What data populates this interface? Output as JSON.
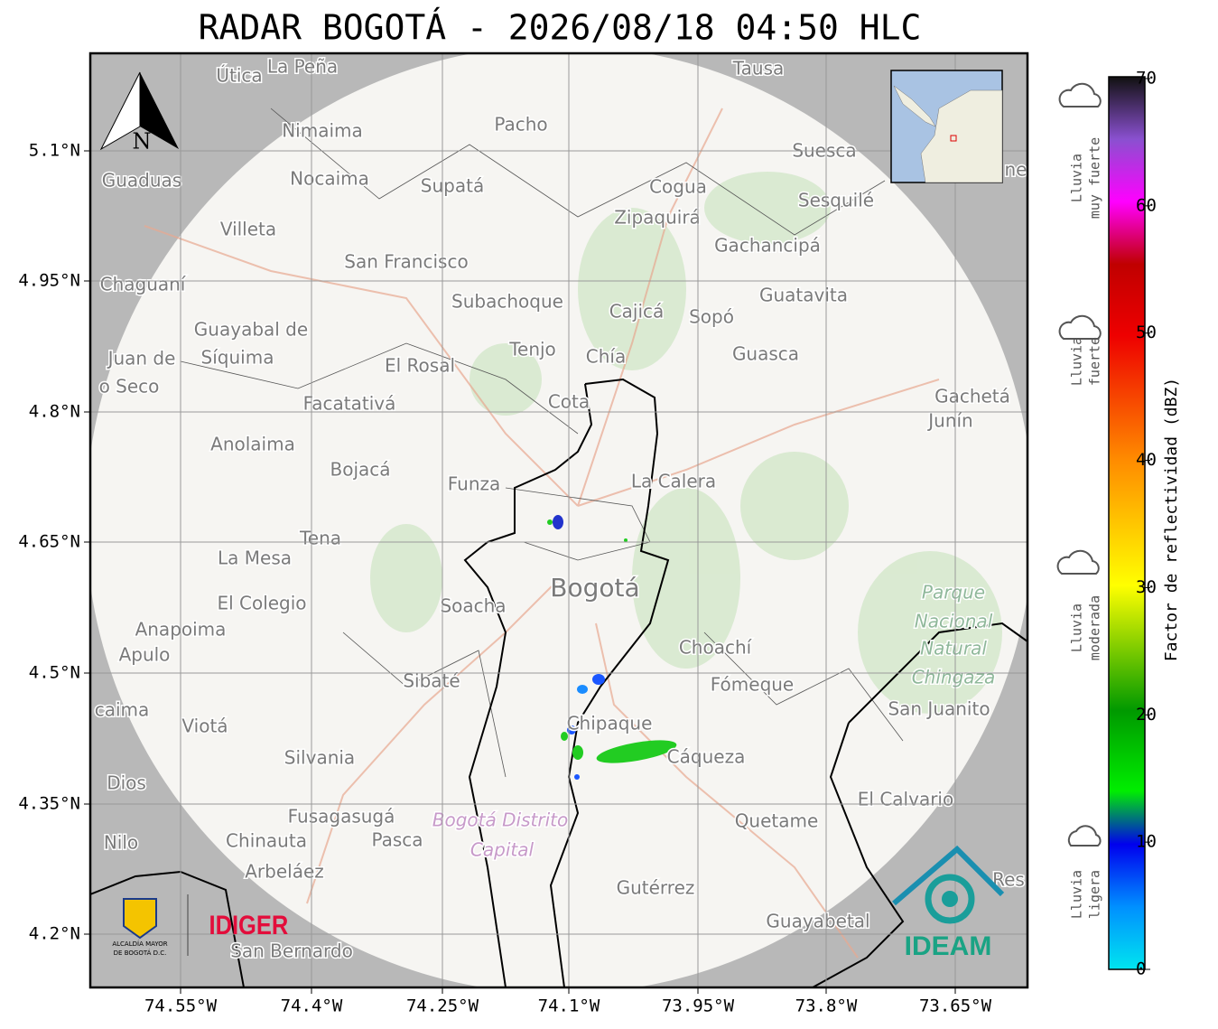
{
  "title": "RADAR BOGOTÁ - 2026/08/18 04:50 HLC",
  "map": {
    "lon_labels": [
      "74.55°W",
      "74.4°W",
      "74.25°W",
      "74.1°W",
      "73.95°W",
      "73.8°W",
      "73.65°W"
    ],
    "lat_labels": [
      "5.1°N",
      "4.95°N",
      "4.8°N",
      "4.65°N",
      "4.5°N",
      "4.35°N",
      "4.2°N"
    ],
    "north": "N",
    "places": [
      "Útica",
      "La Peña",
      "Tausa",
      "Pacho",
      "Nimaima",
      "Guaduas",
      "Nocaima",
      "Supatá",
      "Cogua",
      "Suesca",
      "Sesquilé",
      "Zipaquirá",
      "Villeta",
      "Gachancipá",
      "San Francisco",
      "Chaguaní",
      "Guatavita",
      "Subachoque",
      "Cajicá",
      "Sopó",
      "Guayabal de",
      "Síquima",
      "Juan de",
      "Tenjo",
      "Chía",
      "Guasca",
      "El Rosal",
      "o Seco",
      "Facatativá",
      "Cota",
      "Gachetá",
      "Junín",
      "Anolaima",
      "Bojacá",
      "Funza",
      "La Calera",
      "Tena",
      "La Mesa",
      "Bogotá",
      "Soacha",
      "Parque",
      "Nacional",
      "Natural",
      "Chingaza",
      "El Colegio",
      "Anapoima",
      "Apulo",
      "Choachí",
      "Sibaté",
      "Fómeque",
      "San Juanito",
      "caima",
      "Viotá",
      "Chipaque",
      "Silvania",
      "Cáqueza",
      "Dios",
      "El Calvario",
      "Fusagasugá",
      "Bogotá Distrito",
      "Capital",
      "Quetame",
      "Nilo",
      "Chinauta",
      "Pasca",
      "Arbeláez",
      "Gutérrez",
      "Guayabetal",
      "San Bernardo",
      "Res",
      "ne"
    ],
    "logos": {
      "alcaldia": [
        "ALCALDÍA MAYOR",
        "DE BOGOTÁ D.C."
      ],
      "idiger": "IDIGER",
      "ideam": "IDEAM"
    }
  },
  "colorbar": {
    "label": "Factor de reflectividad (dBZ)",
    "lim": [
      0,
      70
    ],
    "ticks": [
      0,
      10,
      20,
      30,
      40,
      50,
      60,
      70
    ]
  },
  "rain_levels": [
    [
      "Lluvia",
      "muy fuerte"
    ],
    [
      "Lluvia",
      "fuerte"
    ],
    [
      "Lluvia",
      "moderada"
    ],
    [
      "Lluvia",
      "ligera"
    ]
  ]
}
